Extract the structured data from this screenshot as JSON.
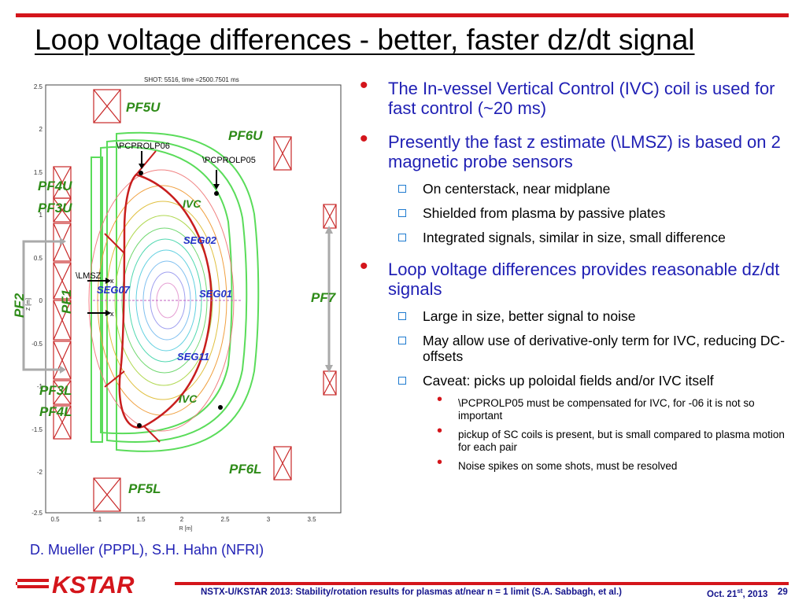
{
  "slide": {
    "title": "Loop voltage differences - better, faster dz/dt signal",
    "credit": "D. Mueller (PPPL), S.H. Hahn (NFRI)"
  },
  "figure": {
    "header": "SHOT: 5516, time =2500.7501 ms",
    "xlabel": "R [m]",
    "ylabel": "Z [m]",
    "xticks": [
      "0.5",
      "1",
      "1.5",
      "2",
      "2.5",
      "3",
      "3.5"
    ],
    "yticks": [
      "2.5",
      "2",
      "1.5",
      "1",
      "0.5",
      "0",
      "-0.5",
      "-1",
      "-1.5",
      "-2",
      "-2.5"
    ],
    "labels": {
      "pf5u": "PF5U",
      "pf6u": "PF6U",
      "pf4u": "PF4U",
      "pf3u": "PF3U",
      "pf2": "PF2",
      "pf1": "PF1",
      "pf7": "PF7",
      "pf3l": "PF3L",
      "pf4l": "PF4L",
      "pf6l": "PF6L",
      "pf5l": "PF5L",
      "ivc_top": "IVC",
      "ivc_bot": "IVC",
      "seg02": "SEG02",
      "seg07": "SEG07",
      "seg01": "SEG01",
      "seg11": "SEG11",
      "probe06": "\\PCPROLP06",
      "probe05": "\\PCPROLP05",
      "lmsz": "\\LMSZ"
    },
    "colors": {
      "coil_label": "#2e8b18",
      "seg_label": "#2332c8",
      "coil_box": "#c82828",
      "plasma_boundary": "#c81e1e",
      "vessel": "#5adc5a"
    }
  },
  "bullets": [
    {
      "text": "The In-vessel Vertical Control (IVC) coil is used for fast control (~20 ms)"
    },
    {
      "text": "Presently the fast z estimate (\\LMSZ) is based on 2 magnetic probe sensors",
      "sub": [
        "On centerstack, near midplane",
        "Shielded from plasma by passive plates",
        "Integrated signals, similar in size, small difference"
      ]
    },
    {
      "text": "Loop voltage differences provides reasonable dz/dt signals",
      "sub": [
        "Large in size, better signal to  noise",
        "May allow use of derivative-only term for IVC, reducing DC-offsets",
        "Caveat: picks up poloidal fields and/or IVC itself"
      ],
      "subsub": [
        "\\PCPROLP05 must be compensated for IVC, for -06 it is not so important",
        "pickup of SC coils is present, but is small compared to plasma motion for each pair",
        "Noise spikes on  some shots, must be resolved"
      ]
    }
  ],
  "footer": {
    "logo": "KSTAR",
    "text": "NSTX-U/KSTAR 2013: Stability/rotation results for plasmas at/near  n = 1 limit (S.A. Sabbagh, et al.)",
    "date_prefix": "Oct. 21",
    "date_sup": "st",
    "date_suffix": ", 2013",
    "page": "29"
  }
}
